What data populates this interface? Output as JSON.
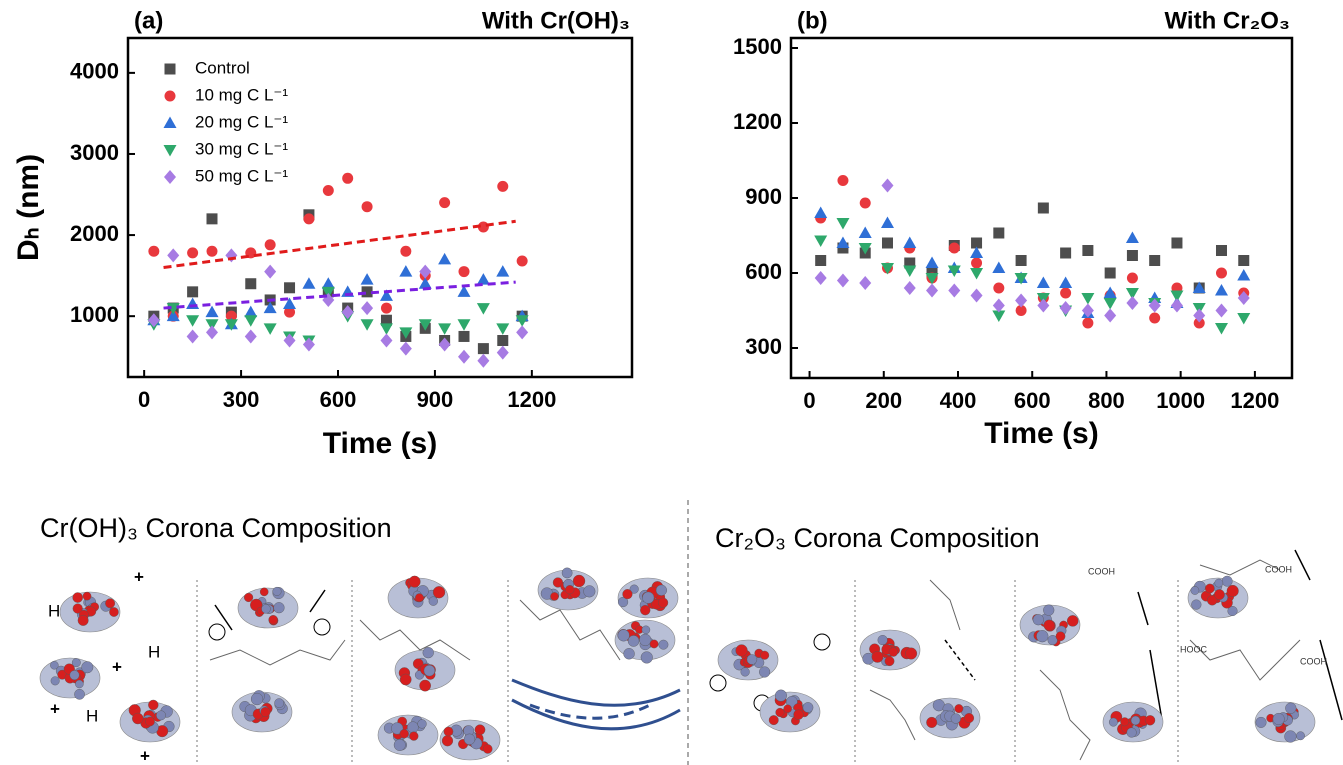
{
  "chart_data": [
    {
      "type": "scatter",
      "panel": "(a)",
      "title": "With Cr(OH)₃",
      "x_label": "Time (s)",
      "y_label": "Dₕ (nm)",
      "xlim": [
        -50,
        1510
      ],
      "ylim": [
        250,
        4430
      ],
      "xticks": [
        0,
        300,
        600,
        900,
        1200
      ],
      "yticks": [
        1000,
        2000,
        3000,
        4000
      ],
      "legend": "upper left",
      "x": [
        30,
        90,
        150,
        210,
        270,
        330,
        390,
        450,
        510,
        570,
        630,
        690,
        750,
        810,
        870,
        930,
        990,
        1050,
        1110,
        1170
      ],
      "series": [
        {
          "name": "Control",
          "color": "#4d4d4d",
          "marker": "square",
          "values": [
            1000,
            1100,
            1300,
            2200,
            1050,
            1400,
            1200,
            1350,
            2250,
            1300,
            1100,
            1300,
            950,
            750,
            850,
            700,
            750,
            600,
            700,
            1000
          ]
        },
        {
          "name": "10 mg C L⁻¹",
          "color": "#e8383d",
          "marker": "circle",
          "values": [
            1800,
            1000,
            1780,
            1800,
            1000,
            1780,
            1880,
            1050,
            2200,
            2550,
            2700,
            2350,
            1100,
            1800,
            1500,
            2400,
            1550,
            2100,
            2600,
            1680
          ]
        },
        {
          "name": "20 mg C L⁻¹",
          "color": "#2f6fd6",
          "marker": "triangle-up",
          "values": [
            950,
            1000,
            1150,
            1050,
            900,
            1050,
            1100,
            1150,
            1400,
            1400,
            1300,
            1450,
            1250,
            1550,
            1400,
            1700,
            1300,
            1450,
            1550,
            1000
          ]
        },
        {
          "name": "30 mg C L⁻¹",
          "color": "#2ea86b",
          "marker": "triangle-down",
          "values": [
            900,
            1100,
            950,
            900,
            900,
            950,
            850,
            750,
            700,
            1300,
            1000,
            900,
            850,
            800,
            900,
            850,
            900,
            1100,
            850,
            950
          ]
        },
        {
          "name": "50 mg C L⁻¹",
          "color": "#a77be3",
          "marker": "diamond",
          "values": [
            950,
            1750,
            750,
            800,
            1750,
            750,
            1550,
            700,
            650,
            1200,
            1050,
            1100,
            700,
            600,
            1550,
            650,
            500,
            450,
            550,
            800
          ]
        }
      ],
      "trendlines": [
        {
          "color": "#e01b1b",
          "x": [
            60,
            1150
          ],
          "values": [
            1600,
            2170
          ]
        },
        {
          "color": "#7a1fe0",
          "x": [
            60,
            1150
          ],
          "values": [
            1100,
            1420
          ]
        }
      ]
    },
    {
      "type": "scatter",
      "panel": "(b)",
      "title": "With Cr₂O₃",
      "x_label": "Time (s)",
      "xlim": [
        -50,
        1300
      ],
      "ylim": [
        180,
        1540
      ],
      "xticks": [
        0,
        200,
        400,
        600,
        800,
        1000,
        1200
      ],
      "yticks": [
        300,
        600,
        900,
        1200,
        1500
      ],
      "x": [
        30,
        90,
        150,
        210,
        270,
        330,
        390,
        450,
        510,
        570,
        630,
        690,
        750,
        810,
        870,
        930,
        990,
        1050,
        1110,
        1170
      ],
      "series": [
        {
          "color": "#4d4d4d",
          "marker": "square",
          "values": [
            650,
            700,
            680,
            720,
            640,
            600,
            710,
            720,
            760,
            650,
            860,
            680,
            690,
            600,
            670,
            650,
            720,
            540,
            690,
            650
          ]
        },
        {
          "color": "#e8383d",
          "marker": "circle",
          "values": [
            820,
            970,
            880,
            620,
            700,
            580,
            700,
            640,
            540,
            450,
            500,
            520,
            400,
            510,
            580,
            420,
            540,
            400,
            600,
            520
          ]
        },
        {
          "color": "#2f6fd6",
          "marker": "triangle-up",
          "values": [
            840,
            720,
            760,
            800,
            720,
            640,
            620,
            680,
            620,
            580,
            560,
            560,
            440,
            520,
            740,
            500,
            480,
            540,
            530,
            590
          ]
        },
        {
          "color": "#2ea86b",
          "marker": "triangle-down",
          "values": [
            730,
            800,
            700,
            620,
            610,
            580,
            610,
            600,
            430,
            580,
            500,
            450,
            500,
            480,
            520,
            480,
            510,
            460,
            380,
            420
          ]
        },
        {
          "color": "#a77be3",
          "marker": "diamond",
          "values": [
            580,
            570,
            560,
            950,
            540,
            530,
            530,
            510,
            470,
            490,
            470,
            460,
            450,
            430,
            480,
            470,
            470,
            430,
            450,
            500
          ]
        }
      ]
    }
  ],
  "diagram": {
    "left_title": "Cr(OH)₃ Corona Composition",
    "right_title": "Cr₂O₃ Corona Composition",
    "labels": [
      "H",
      "H",
      "H",
      "+",
      "+",
      "+",
      "+",
      "COOH",
      "COOH",
      "COOH",
      "HOOC"
    ]
  }
}
